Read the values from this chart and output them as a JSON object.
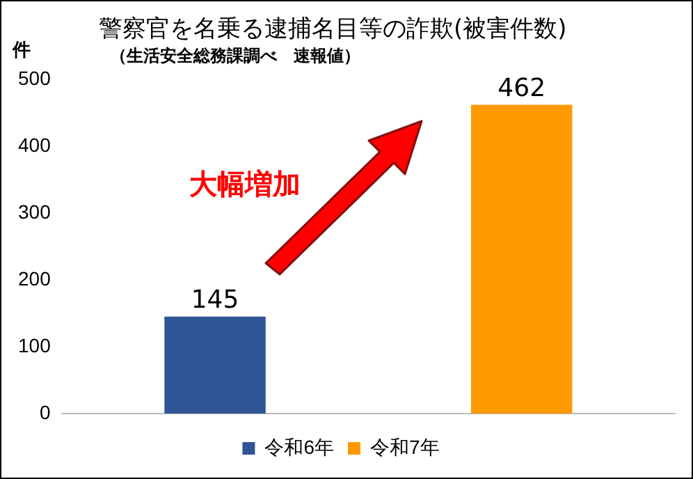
{
  "chart_data": {
    "type": "bar",
    "title": "警察官を名乗る逮捕名目等の詐欺(被害件数)",
    "subtitle": "（生活安全総務課調べ　速報値）",
    "ylabel": "件",
    "categories": [
      null,
      null
    ],
    "series": [
      {
        "name": "令和6年",
        "color": "#2f5597",
        "values": [
          145,
          null
        ]
      },
      {
        "name": "令和7年",
        "color": "#ff9900",
        "values": [
          null,
          462
        ]
      }
    ],
    "ylim": [
      0,
      500
    ],
    "yticks": [
      0,
      100,
      200,
      300,
      400,
      500
    ],
    "grid": false,
    "legend": "bottom",
    "data_labels": true,
    "annotations": [
      "大幅増加"
    ]
  }
}
